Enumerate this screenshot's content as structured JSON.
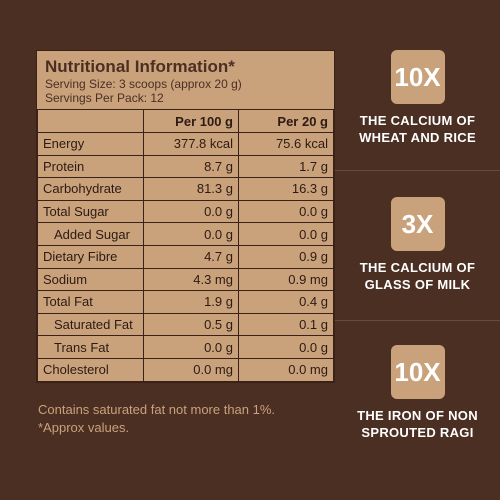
{
  "header": {
    "title": "Nutritional Information*",
    "serving_size": "Serving Size: 3 scoops (approx 20 g)",
    "servings_per_pack": "Servings Per Pack: 12"
  },
  "table": {
    "columns": [
      "Per 100 g",
      "Per 20 g"
    ],
    "rows": [
      [
        "Energy",
        "377.8 kcal",
        "75.6 kcal"
      ],
      [
        "Protein",
        "8.7 g",
        "1.7 g"
      ],
      [
        "Carbohydrate",
        "81.3 g",
        "16.3 g"
      ],
      [
        "Total Sugar",
        "0.0 g",
        "0.0 g"
      ],
      [
        "Added Sugar",
        "0.0 g",
        "0.0 g"
      ],
      [
        "Dietary Fibre",
        "4.7 g",
        "0.9 g"
      ],
      [
        "Sodium",
        "4.3 mg",
        "0.9 mg"
      ],
      [
        "Total Fat",
        "1.9 g",
        "0.4 g"
      ],
      [
        "Saturated Fat",
        "0.5 g",
        "0.1 g"
      ],
      [
        "Trans Fat",
        "0.0 g",
        "0.0 g"
      ],
      [
        "Cholesterol",
        "0.0 mg",
        "0.0 mg"
      ]
    ]
  },
  "footnotes": [
    "Contains saturated fat not more than 1%.",
    "*Approx values."
  ],
  "claims": [
    {
      "badge": "10X",
      "lines": [
        "THE CALCIUM OF",
        "WHEAT AND RICE"
      ]
    },
    {
      "badge": "3X",
      "lines": [
        "THE CALCIUM OF",
        "GLASS OF MILK"
      ]
    },
    {
      "badge": "10X",
      "lines": [
        "THE IRON OF NON",
        "SPROUTED RAGI"
      ]
    }
  ]
}
